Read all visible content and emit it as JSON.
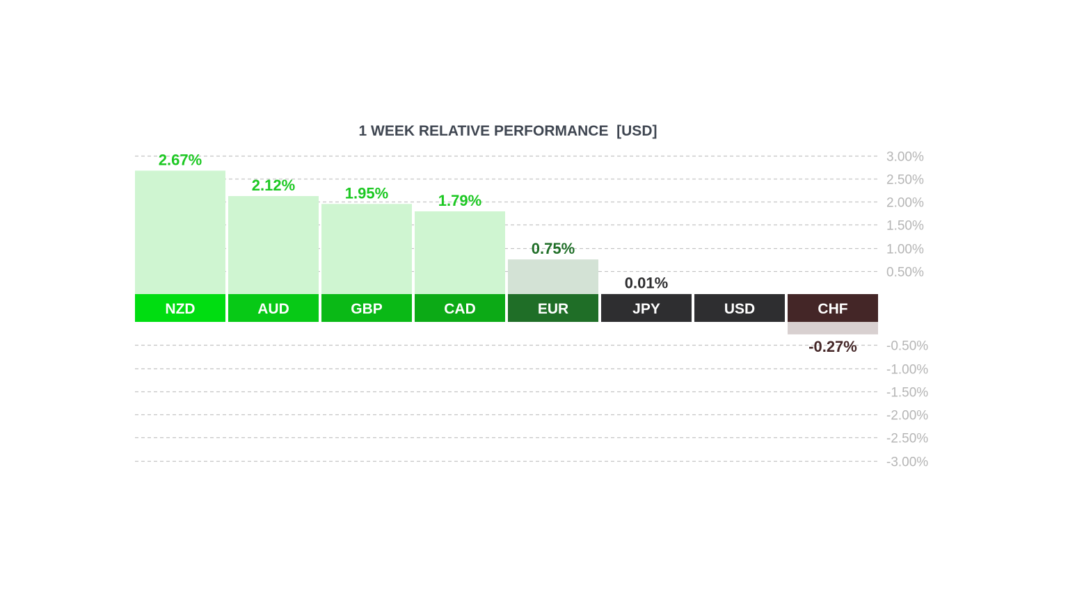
{
  "chart_data": {
    "type": "bar",
    "title": "1 WEEK RELATIVE PERFORMANCE  [USD]",
    "categories": [
      "NZD",
      "AUD",
      "GBP",
      "CAD",
      "EUR",
      "JPY",
      "USD",
      "CHF"
    ],
    "values": [
      2.67,
      2.12,
      1.95,
      1.79,
      0.75,
      0.01,
      null,
      -0.27
    ],
    "value_labels": [
      "2.67%",
      "2.12%",
      "1.95%",
      "1.79%",
      "0.75%",
      "0.01%",
      "",
      "-0.27%"
    ],
    "ylim": [
      -3.0,
      3.0
    ],
    "yticks": [
      3.0,
      2.5,
      2.0,
      1.5,
      1.0,
      0.5,
      -0.5,
      -1.0,
      -1.5,
      -2.0,
      -2.5,
      -3.0
    ],
    "ytick_labels": [
      "3.00%",
      "2.50%",
      "2.00%",
      "1.50%",
      "1.00%",
      "0.50%",
      "-0.50%",
      "-1.00%",
      "-1.50%",
      "-2.00%",
      "-2.50%",
      "-3.00%"
    ],
    "grid": true,
    "legend": "none",
    "colors": {
      "category_labels": [
        "#00dd11",
        "#07c916",
        "#0ab916",
        "#0caa16",
        "#1f6e27",
        "#2e2e30",
        "#2e2e30",
        "#442627"
      ],
      "bar_fills": [
        "#cff5d1",
        "#cff5d1",
        "#cff5d1",
        "#cff5d1",
        "#d3e2d5",
        "#e6e6e6",
        "#e6e6e6",
        "#d8d0d0"
      ],
      "value_text": [
        "#1cc822",
        "#1cc822",
        "#1cc822",
        "#1cc822",
        "#1f6e27",
        "#2e2e30",
        "#2e2e30",
        "#442627"
      ]
    }
  }
}
